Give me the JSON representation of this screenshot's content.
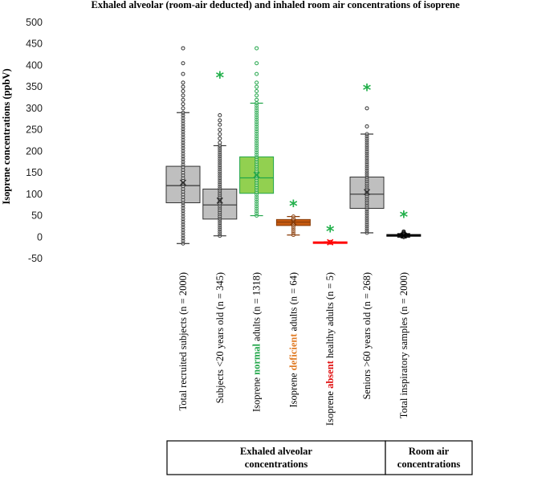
{
  "chart_data": {
    "type": "box",
    "title": "Exhaled alveolar (room-air deducted) and inhaled room air concentrations of isoprene",
    "ylabel": "Isoprene concentrations (ppbV)",
    "xlabel": "",
    "ylim": [
      -50,
      500
    ],
    "yticks": [
      -50,
      0,
      50,
      100,
      150,
      200,
      250,
      300,
      350,
      400,
      450,
      500
    ],
    "groups": [
      {
        "label_line1": "Exhaled alveolar",
        "label_line2": "concentrations"
      },
      {
        "label_line1": "Room air",
        "label_line2": "concentrations"
      }
    ],
    "categories": [
      {
        "parts": [
          {
            "text": "Total recruited  subjects (n = 2000)",
            "color": "#000000"
          }
        ],
        "q1": 80,
        "median": 120,
        "q3": 165,
        "mean": 127,
        "whisker_low": -15,
        "whisker_high": 290,
        "fill": "#bfbfbf",
        "stroke": "#333333",
        "mean_color": "#333333",
        "dot_color": "#333333",
        "outliers": [
          300,
          310,
          320,
          330,
          340,
          350,
          360,
          380,
          405,
          440
        ],
        "star": false
      },
      {
        "parts": [
          {
            "text": "Subjects <20 years old (n = 345)",
            "color": "#000000"
          }
        ],
        "q1": 42,
        "median": 75,
        "q3": 112,
        "mean": 85,
        "whisker_low": 3,
        "whisker_high": 213,
        "fill": "#bfbfbf",
        "stroke": "#333333",
        "mean_color": "#333333",
        "dot_color": "#333333",
        "outliers": [
          220,
          230,
          240,
          250,
          262,
          272,
          284
        ],
        "star": true
      },
      {
        "parts": [
          {
            "text": "Isoprene ",
            "color": "#000000"
          },
          {
            "text": "normal",
            "color": "#22a64a",
            "bold": true
          },
          {
            "text": " adults (n = 1318)",
            "color": "#000000"
          }
        ],
        "q1": 102,
        "median": 138,
        "q3": 187,
        "mean": 145,
        "whisker_low": 50,
        "whisker_high": 312,
        "fill": "#92d050",
        "stroke": "#22a64a",
        "mean_color": "#22a64a",
        "dot_color": "#22a64a",
        "outliers": [
          320,
          330,
          340,
          350,
          360,
          380,
          405,
          440
        ],
        "star": false
      },
      {
        "parts": [
          {
            "text": "Isoprene ",
            "color": "#000000"
          },
          {
            "text": "deficient",
            "color": "#e07b24",
            "bold": true
          },
          {
            "text": " adults (n = 64)",
            "color": "#000000"
          }
        ],
        "q1": 27,
        "median": 35,
        "q3": 41,
        "mean": 35,
        "whisker_low": 5,
        "whisker_high": 48,
        "fill": "#c55a11",
        "stroke": "#8a3c08",
        "mean_color": "#8a3c08",
        "dot_color": "#8a3c08",
        "outliers": [],
        "star": true
      },
      {
        "parts": [
          {
            "text": "Isoprene ",
            "color": "#000000"
          },
          {
            "text": "absent",
            "color": "#e01010",
            "bold": true
          },
          {
            "text": " healthy adults (n = 5)",
            "color": "#000000"
          }
        ],
        "q1": -13,
        "median": -12,
        "q3": -11,
        "mean": -12,
        "whisker_low": -13,
        "whisker_high": -11,
        "fill": "#ff0000",
        "stroke": "#ff0000",
        "mean_color": "#ff0000",
        "dot_color": "#ff0000",
        "outliers": [],
        "star": true
      },
      {
        "parts": [
          {
            "text": "Seniors >60 years old (n = 268)",
            "color": "#000000"
          }
        ],
        "q1": 67,
        "median": 100,
        "q3": 140,
        "mean": 105,
        "whisker_low": 10,
        "whisker_high": 240,
        "fill": "#bfbfbf",
        "stroke": "#333333",
        "mean_color": "#333333",
        "dot_color": "#333333",
        "outliers": [
          258,
          300
        ],
        "star": true
      },
      {
        "parts": [
          {
            "text": "Total inspiratory samples (n = 2000)",
            "color": "#000000"
          }
        ],
        "q1": 2,
        "median": 4,
        "q3": 6,
        "mean": 4,
        "whisker_low": 0,
        "whisker_high": 8,
        "fill": "#555555",
        "stroke": "#000000",
        "mean_color": "#000000",
        "dot_color": "#000000",
        "outliers": [
          10,
          13
        ],
        "star": true
      }
    ],
    "star_color": "#22b04b",
    "star_symbol": "*"
  }
}
